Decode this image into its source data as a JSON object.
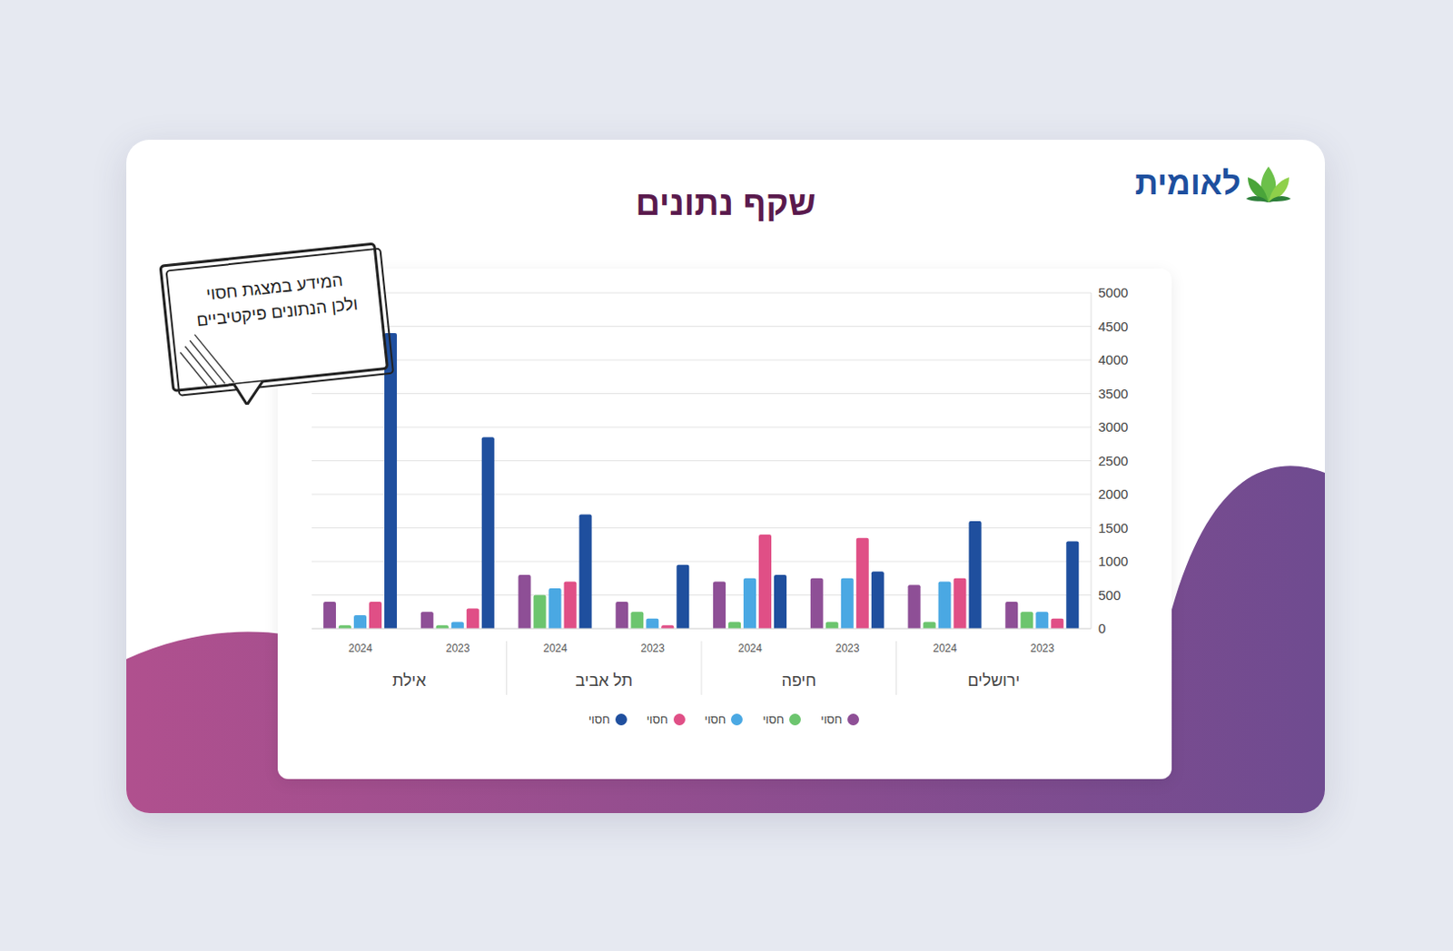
{
  "chart_data": {
    "type": "bar",
    "title": "שקף נתונים",
    "logo": "לאומית",
    "annotation": [
      "המידע במצגת חסוי",
      "ולכן הנתונים פיקטיביים"
    ],
    "categories": [
      "2023",
      "2024",
      "2023",
      "2024",
      "2023",
      "2024",
      "2023",
      "2024"
    ],
    "groups": [
      "ירושלים",
      "חיפה",
      "תל אביב",
      "אילת"
    ],
    "series": [
      {
        "name": "חסוי",
        "color": "#8e4f96",
        "values": [
          400,
          650,
          750,
          700,
          400,
          800,
          250,
          400
        ]
      },
      {
        "name": "חסוי",
        "color": "#6cc56e",
        "values": [
          250,
          100,
          100,
          100,
          250,
          500,
          50,
          50
        ]
      },
      {
        "name": "חסוי",
        "color": "#4aa8e3",
        "values": [
          250,
          700,
          750,
          750,
          150,
          600,
          100,
          200
        ]
      },
      {
        "name": "חסוי",
        "color": "#e04f86",
        "values": [
          150,
          750,
          1350,
          1400,
          50,
          700,
          300,
          400
        ]
      },
      {
        "name": "חסוי",
        "color": "#1f4f9e",
        "values": [
          1300,
          1600,
          850,
          800,
          950,
          1700,
          2850,
          4400
        ]
      }
    ],
    "ylim": [
      0,
      5000
    ],
    "yticks": [
      0,
      500,
      1000,
      1500,
      2000,
      2500,
      3000,
      3500,
      4000,
      4500,
      5000
    ],
    "grid": true,
    "legend": "bottom"
  }
}
